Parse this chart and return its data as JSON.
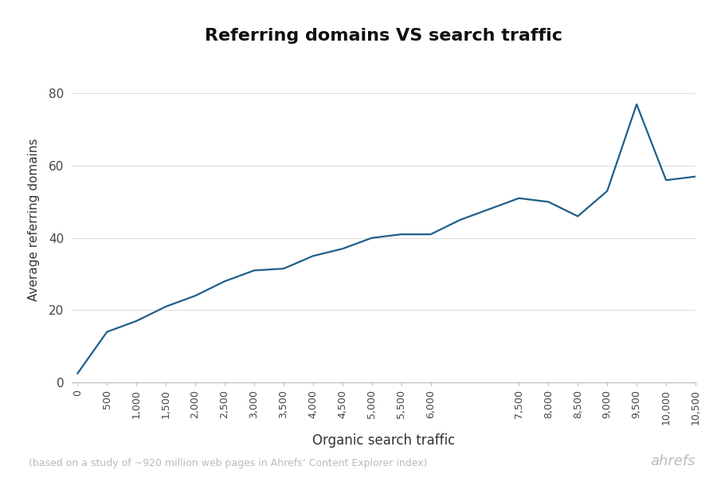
{
  "title": "Referring domains VS search traffic",
  "xlabel": "Organic search traffic",
  "ylabel": "Average referring domains",
  "footnote": "(based on a study of ~920 million web pages in Ahrefs’ Content Explorer index)",
  "branding": "ahrefs",
  "line_color": "#1f5f8b",
  "background_color": "#ffffff",
  "x": [
    0,
    500,
    1000,
    1500,
    2000,
    2500,
    3000,
    3500,
    4000,
    4500,
    5000,
    5500,
    6000,
    6500,
    7500,
    8000,
    8500,
    9000,
    9500,
    10000,
    10500
  ],
  "y": [
    2.5,
    14,
    17,
    21,
    24,
    28,
    31,
    31.5,
    35,
    37,
    40,
    41,
    41,
    45,
    51,
    50,
    46,
    53,
    77,
    56,
    57
  ],
  "ylim": [
    0,
    90
  ],
  "xlim": [
    -100,
    10500
  ],
  "yticks": [
    0,
    20,
    40,
    60,
    80
  ],
  "xticks": [
    0,
    500,
    1000,
    1500,
    2000,
    2500,
    3000,
    3500,
    4000,
    4500,
    5000,
    5500,
    6000,
    7500,
    8000,
    8500,
    9000,
    9500,
    10000,
    10500
  ]
}
